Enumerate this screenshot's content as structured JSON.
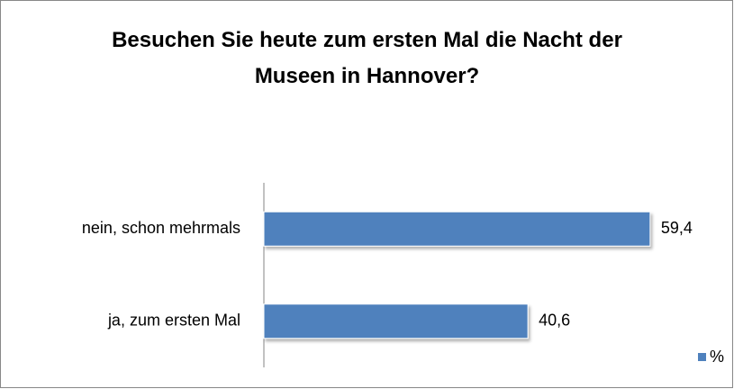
{
  "chart_data": {
    "type": "bar",
    "orientation": "horizontal",
    "title": "Besuchen Sie heute zum ersten Mal die Nacht der Museen in Hannover?",
    "categories": [
      "nein, schon mehrmals",
      "ja, zum ersten Mal"
    ],
    "series": [
      {
        "name": "%",
        "color": "#4f81bd",
        "values": [
          59.4,
          40.6
        ],
        "value_labels": [
          "59,4",
          "40,6"
        ]
      }
    ],
    "legend": "bottom-right"
  }
}
